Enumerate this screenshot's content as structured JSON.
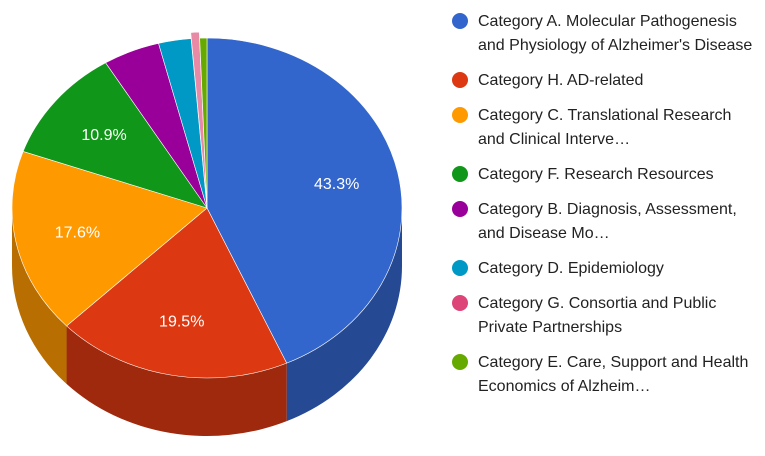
{
  "chart_data": {
    "type": "pie",
    "style": "3d",
    "title": "",
    "legend_position": "right",
    "slices": [
      {
        "label": "Category A. Molecular Pathogenesis and Physiology of Alzheimer's Disease",
        "value": 43.3,
        "data_label": "43.3%",
        "color": "#3366cc"
      },
      {
        "label": "Category H. AD-related",
        "value": 19.5,
        "data_label": "19.5%",
        "color": "#dc3912"
      },
      {
        "label": "Category C. Translational Research and Clinical Interve…",
        "value": 17.6,
        "data_label": "17.6%",
        "color": "#ff9900"
      },
      {
        "label": "Category F. Research Resources",
        "value": 10.9,
        "data_label": "10.9%",
        "color": "#109618"
      },
      {
        "label": "Category B. Diagnosis, Assessment, and Disease Mo…",
        "value": 4.7,
        "data_label": "",
        "color": "#990099"
      },
      {
        "label": "Category D. Epidemiology",
        "value": 2.7,
        "data_label": "",
        "color": "#0099c6"
      },
      {
        "label": "Category G. Consortia and Public Private Partnerships",
        "value": 0.7,
        "data_label": "",
        "color": "#dd4477",
        "exploded": true
      },
      {
        "label": "Category E. Care, Support and Health Economics of Alzheim…",
        "value": 0.6,
        "data_label": "",
        "color": "#66aa00"
      }
    ]
  }
}
